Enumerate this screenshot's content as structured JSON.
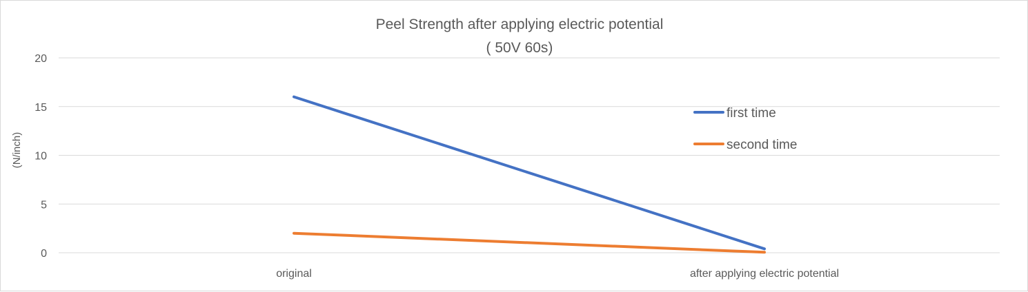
{
  "chart_data": {
    "type": "line",
    "title": "Peel Strength  after applying electric potential",
    "subtitle": "( 50V 60s)",
    "xlabel": "",
    "ylabel": "(N/inch)",
    "categories": [
      "original",
      "after applying electric potential"
    ],
    "series": [
      {
        "name": "first time",
        "values": [
          16,
          0.4
        ],
        "color": "#4472C4"
      },
      {
        "name": "second time",
        "values": [
          2,
          0.05
        ],
        "color": "#ED7D31"
      }
    ],
    "ylim": [
      0,
      20
    ],
    "yticks": [
      "0",
      "5",
      "10",
      "15",
      "20"
    ],
    "grid": true,
    "legend_position": "right"
  }
}
